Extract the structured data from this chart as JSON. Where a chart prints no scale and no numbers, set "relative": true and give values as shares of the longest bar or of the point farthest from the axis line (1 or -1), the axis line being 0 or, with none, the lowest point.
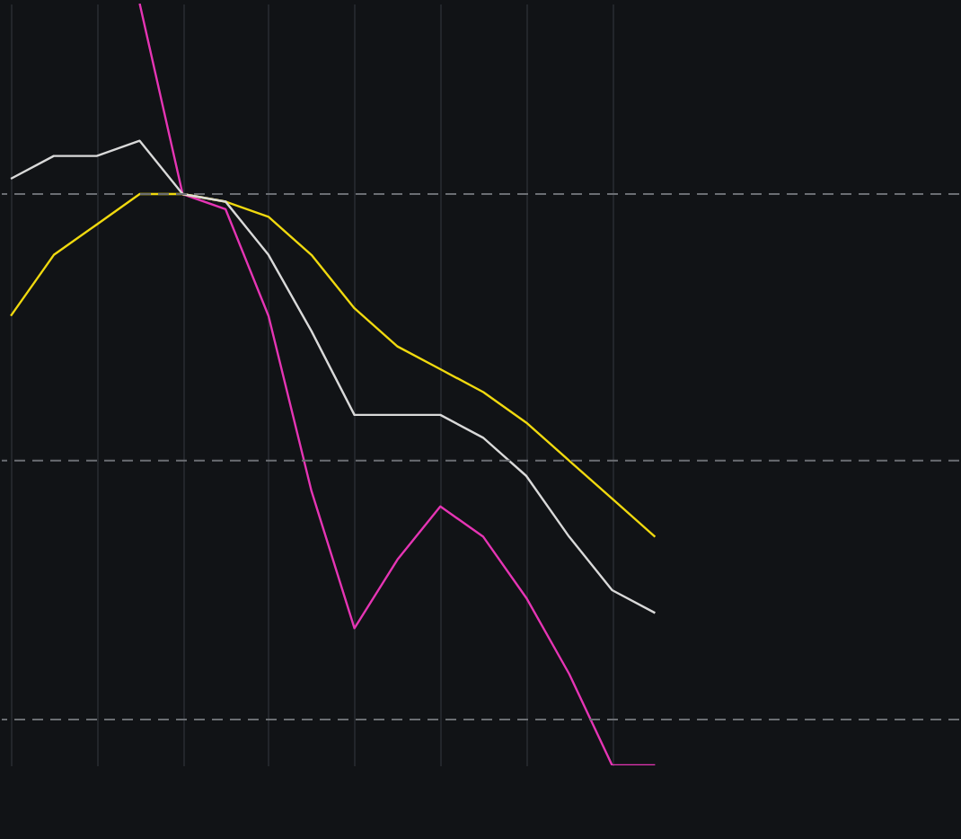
{
  "chart_data": {
    "type": "line",
    "relative": true,
    "tick_labels": false,
    "grid": true,
    "categories": [
      null,
      null,
      null,
      null,
      null,
      null,
      null,
      null,
      null,
      null,
      null,
      null,
      null,
      null,
      null,
      null
    ],
    "series": [
      {
        "color": "#d9d9d9",
        "values": [
          0.77,
          0.8,
          0.8,
          0.82,
          0.75,
          0.74,
          0.67,
          0.57,
          0.46,
          0.46,
          0.46,
          0.43,
          0.38,
          0.3,
          0.23,
          0.2
        ]
      },
      {
        "color": "#f0d90f",
        "values": [
          0.59,
          0.67,
          0.71,
          0.75,
          0.75,
          0.74,
          0.72,
          0.67,
          0.6,
          0.55,
          0.52,
          0.49,
          0.45,
          0.4,
          0.35,
          0.3
        ]
      },
      {
        "color": "#e535b4",
        "values": [
          null,
          null,
          null,
          1.0,
          0.75,
          0.73,
          0.59,
          0.36,
          0.18,
          0.27,
          0.34,
          0.3,
          0.22,
          0.12,
          0.0,
          0.0
        ]
      }
    ],
    "ref_lines": [
      {
        "axis": "y",
        "value": 0.75,
        "color": "#6b6e73",
        "line_style": "dashed"
      },
      {
        "axis": "y",
        "value": 0.4,
        "color": "#6b6e73",
        "line_style": "dashed"
      },
      {
        "axis": "y",
        "value": 0.06,
        "color": "#6b6e73",
        "line_style": "dashed"
      }
    ]
  }
}
